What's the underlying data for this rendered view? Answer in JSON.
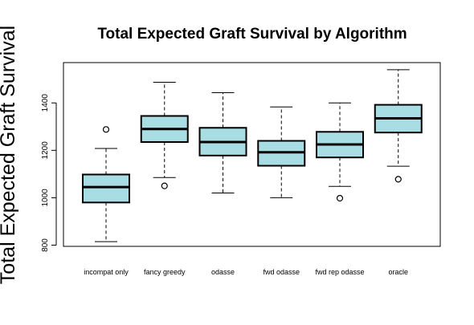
{
  "chart_data": {
    "type": "boxplot",
    "title": "Total Expected Graft Survival by Algorithm",
    "xlabel": "",
    "ylabel": "Total Expected Graft Survival",
    "ylim": [
      795,
      1570
    ],
    "yticks": [
      800,
      1000,
      1200,
      1400
    ],
    "grid": false,
    "box_fill": "#a8dde3",
    "line_color": "#000000",
    "categories": [
      "incompat only",
      "fancy greedy",
      "odasse",
      "fwd odasse",
      "fwd rep odasse",
      "oracle"
    ],
    "boxes": [
      {
        "whisker_low": 815,
        "q1": 980,
        "median": 1045,
        "q3": 1098,
        "whisker_high": 1208,
        "outliers": [
          1288
        ]
      },
      {
        "whisker_low": 1085,
        "q1": 1235,
        "median": 1290,
        "q3": 1345,
        "whisker_high": 1487,
        "outliers": [
          1050
        ]
      },
      {
        "whisker_low": 1020,
        "q1": 1178,
        "median": 1235,
        "q3": 1295,
        "whisker_high": 1443,
        "outliers": []
      },
      {
        "whisker_low": 1000,
        "q1": 1135,
        "median": 1192,
        "q3": 1240,
        "whisker_high": 1383,
        "outliers": []
      },
      {
        "whisker_low": 1048,
        "q1": 1170,
        "median": 1225,
        "q3": 1278,
        "whisker_high": 1400,
        "outliers": [
          998
        ]
      },
      {
        "whisker_low": 1133,
        "q1": 1275,
        "median": 1335,
        "q3": 1392,
        "whisker_high": 1540,
        "outliers": [
          1078
        ]
      }
    ]
  }
}
